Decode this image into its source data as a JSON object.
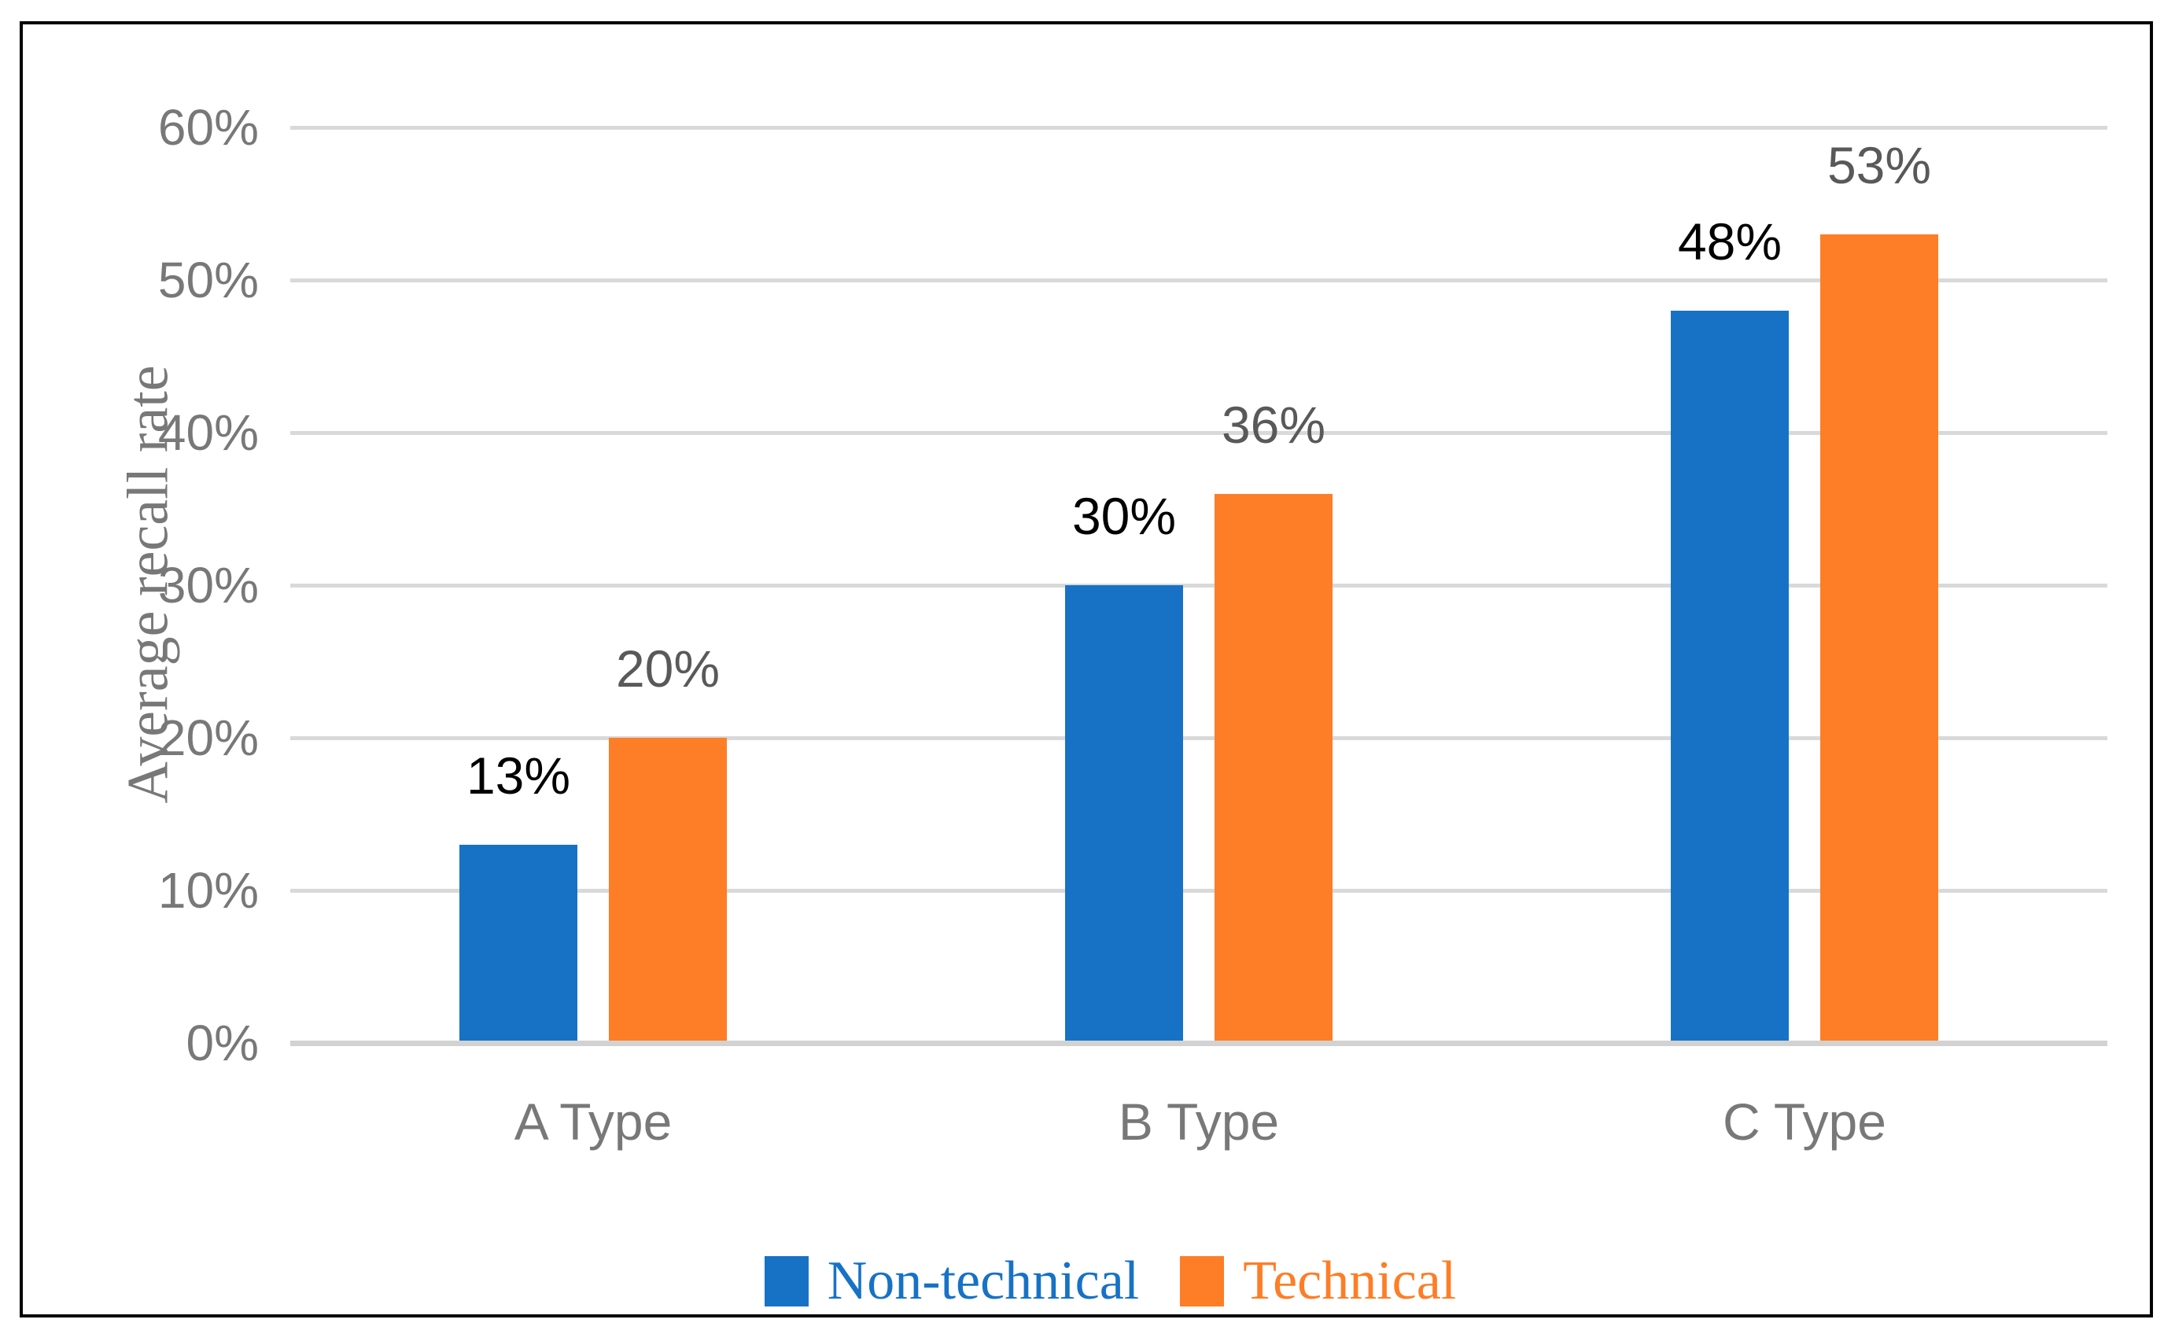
{
  "chart_data": {
    "type": "bar",
    "title": "",
    "ylabel": "Average recall rate",
    "xlabel": "",
    "categories": [
      "A Type",
      "B Type",
      "C Type"
    ],
    "series": [
      {
        "name": "Non-technical",
        "color": "#1772C6",
        "data_label_color": "#000000",
        "values": [
          13,
          30,
          48
        ],
        "data_labels": [
          "13%",
          "30%",
          "48%"
        ]
      },
      {
        "name": "Technical",
        "color": "#FD7E26",
        "data_label_color": "#595959",
        "values": [
          20,
          36,
          53
        ],
        "data_labels": [
          "20%",
          "36%",
          "53%"
        ]
      }
    ],
    "ylim": [
      0,
      60
    ],
    "yticks": [
      {
        "value": 0,
        "label": "0%"
      },
      {
        "value": 10,
        "label": "10%"
      },
      {
        "value": 20,
        "label": "20%"
      },
      {
        "value": 30,
        "label": "30%"
      },
      {
        "value": 40,
        "label": "40%"
      },
      {
        "value": 50,
        "label": "50%"
      },
      {
        "value": 60,
        "label": "60%"
      }
    ],
    "grid": true,
    "legend_position": "bottom",
    "colors": {
      "gridline": "#D9D9D9",
      "axis_line": "#D2D2D2",
      "tick_label": "#787878",
      "category_label": "#787878",
      "axis_title": "#787878",
      "frame_border": "#000000",
      "background": "#FFFFFF"
    }
  }
}
